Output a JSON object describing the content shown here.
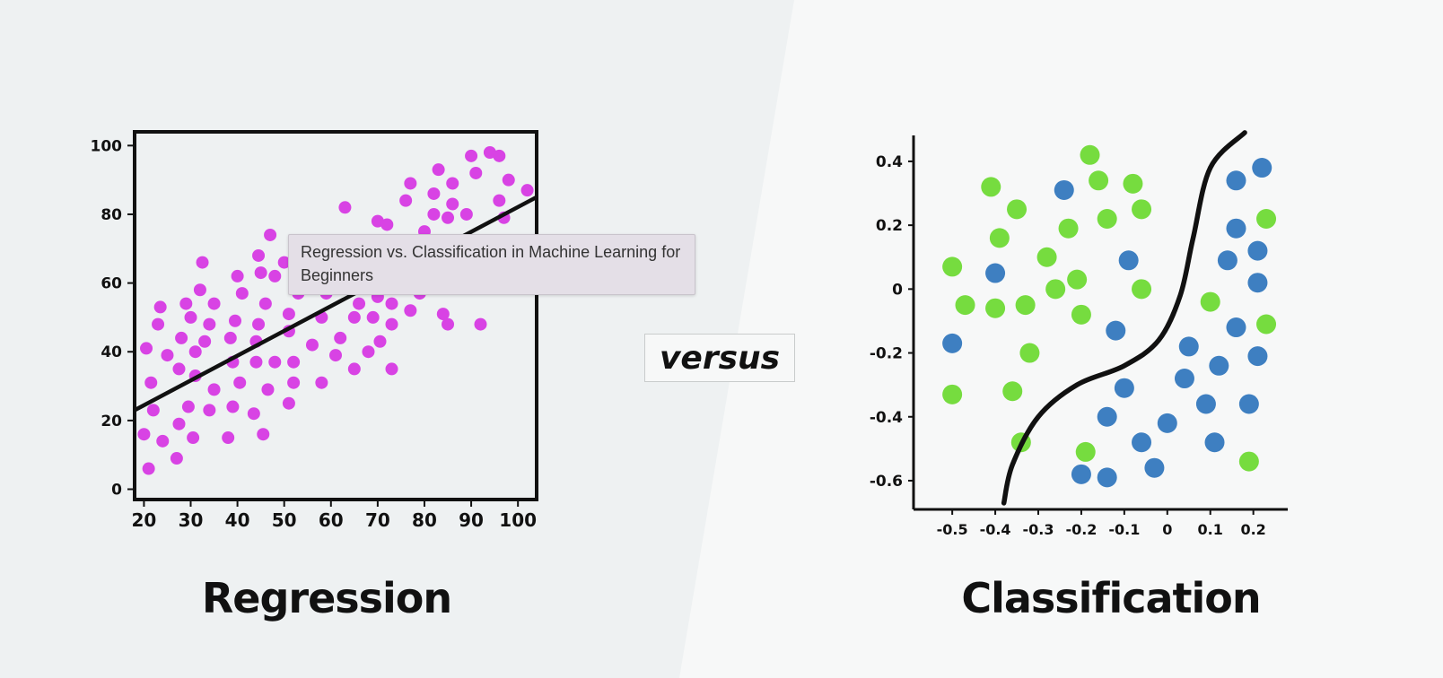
{
  "captions": {
    "left": "Regression",
    "right": "Classification",
    "middle": "versus"
  },
  "tooltip": {
    "text": "Regression vs. Classification in Machine Learning for Beginners"
  },
  "colors": {
    "left_background": "#eef1f2",
    "right_background": "#f7f8f8",
    "regression_point": "#d843e4",
    "class_green": "#76dc3f",
    "class_blue": "#3e7fc1",
    "line": "#111111"
  },
  "chart_data": [
    {
      "type": "scatter",
      "title": "",
      "xlabel": "",
      "ylabel": "",
      "xlim": [
        18,
        104
      ],
      "ylim": [
        -3,
        104
      ],
      "xticks": [
        20,
        30,
        40,
        50,
        60,
        70,
        80,
        90,
        100
      ],
      "yticks": [
        0,
        20,
        40,
        60,
        80,
        100
      ],
      "regression_line": {
        "x": [
          18,
          104
        ],
        "y": [
          23,
          85
        ]
      },
      "series": [
        {
          "points": [
            [
              20,
              16
            ],
            [
              21,
              6
            ],
            [
              20.5,
              41
            ],
            [
              21.5,
              31
            ],
            [
              22,
              23
            ],
            [
              23,
              48
            ],
            [
              23.5,
              53
            ],
            [
              24,
              14
            ],
            [
              25,
              39
            ],
            [
              27,
              9
            ],
            [
              27.5,
              19
            ],
            [
              27.5,
              35
            ],
            [
              28,
              44
            ],
            [
              29,
              54
            ],
            [
              29.5,
              24
            ],
            [
              30,
              50
            ],
            [
              30.5,
              15
            ],
            [
              31,
              40
            ],
            [
              31,
              33
            ],
            [
              32,
              58
            ],
            [
              32.5,
              66
            ],
            [
              33,
              43
            ],
            [
              34,
              48
            ],
            [
              34,
              23
            ],
            [
              35,
              29
            ],
            [
              35,
              54
            ],
            [
              38,
              15
            ],
            [
              38.5,
              44
            ],
            [
              39,
              37
            ],
            [
              39,
              24
            ],
            [
              39.5,
              49
            ],
            [
              40,
              62
            ],
            [
              40.5,
              31
            ],
            [
              41,
              57
            ],
            [
              43.5,
              22
            ],
            [
              44,
              43
            ],
            [
              44,
              37
            ],
            [
              44.5,
              68
            ],
            [
              44.5,
              48
            ],
            [
              45,
              63
            ],
            [
              45.5,
              16
            ],
            [
              46,
              54
            ],
            [
              46.5,
              29
            ],
            [
              47,
              74
            ],
            [
              48,
              37
            ],
            [
              48,
              62
            ],
            [
              50,
              66
            ],
            [
              51,
              25
            ],
            [
              51,
              46
            ],
            [
              51,
              51
            ],
            [
              52,
              31
            ],
            [
              52,
              37
            ],
            [
              53,
              57
            ],
            [
              56,
              42
            ],
            [
              58,
              31
            ],
            [
              58,
              50
            ],
            [
              59,
              59
            ],
            [
              59,
              57
            ],
            [
              61,
              39
            ],
            [
              62,
              44
            ],
            [
              63,
              82
            ],
            [
              65,
              35
            ],
            [
              65,
              50
            ],
            [
              66,
              54
            ],
            [
              67,
              65
            ],
            [
              68,
              40
            ],
            [
              69,
              50
            ],
            [
              70,
              56
            ],
            [
              70.5,
              43
            ],
            [
              70,
              78
            ],
            [
              73,
              35
            ],
            [
              73,
              48
            ],
            [
              73,
              54
            ],
            [
              72,
              77
            ],
            [
              75,
              59
            ],
            [
              77,
              52
            ],
            [
              76,
              84
            ],
            [
              77,
              89
            ],
            [
              79,
              57
            ],
            [
              79,
              70
            ],
            [
              80,
              75
            ],
            [
              82,
              80
            ],
            [
              82,
              86
            ],
            [
              83,
              93
            ],
            [
              84,
              51
            ],
            [
              85,
              48
            ],
            [
              85,
              60
            ],
            [
              85,
              79
            ],
            [
              86,
              72
            ],
            [
              86,
              83
            ],
            [
              86,
              89
            ],
            [
              89,
              80
            ],
            [
              90,
              97
            ],
            [
              91,
              92
            ],
            [
              92,
              48
            ],
            [
              94,
              98
            ],
            [
              96,
              97
            ],
            [
              96,
              84
            ],
            [
              96,
              59
            ],
            [
              97,
              79
            ],
            [
              98,
              90
            ],
            [
              102,
              87
            ]
          ]
        }
      ]
    },
    {
      "type": "scatter",
      "title": "",
      "xlabel": "",
      "ylabel": "",
      "xlim": [
        -0.59,
        0.28
      ],
      "ylim": [
        -0.69,
        0.47
      ],
      "xticks": [
        -0.5,
        -0.4,
        -0.3,
        -0.2,
        -0.1,
        0,
        0.1,
        0.2
      ],
      "yticks": [
        0.4,
        0.2,
        0,
        -0.2,
        -0.4,
        -0.6
      ],
      "decision_boundary": {
        "x": [
          -0.38,
          -0.36,
          -0.3,
          -0.21,
          -0.1,
          -0.02,
          0.03,
          0.06,
          0.1,
          0.18
        ],
        "y": [
          -0.67,
          -0.55,
          -0.4,
          -0.3,
          -0.24,
          -0.16,
          -0.02,
          0.16,
          0.38,
          0.49
        ]
      },
      "series": [
        {
          "points": [
            [
              -0.5,
              0.07
            ],
            [
              -0.47,
              -0.05
            ],
            [
              -0.5,
              -0.33
            ],
            [
              -0.41,
              0.32
            ],
            [
              -0.4,
              -0.06
            ],
            [
              -0.39,
              0.16
            ],
            [
              -0.36,
              -0.32
            ],
            [
              -0.34,
              -0.48
            ],
            [
              -0.35,
              0.25
            ],
            [
              -0.33,
              -0.05
            ],
            [
              -0.32,
              -0.2
            ],
            [
              -0.28,
              0.1
            ],
            [
              -0.26,
              0
            ],
            [
              -0.23,
              0.19
            ],
            [
              -0.21,
              0.03
            ],
            [
              -0.2,
              -0.08
            ],
            [
              -0.19,
              -0.51
            ],
            [
              -0.18,
              0.42
            ],
            [
              -0.16,
              0.34
            ],
            [
              -0.14,
              0.22
            ],
            [
              -0.08,
              0.33
            ],
            [
              -0.06,
              0.25
            ],
            [
              -0.06,
              0
            ],
            [
              0.1,
              -0.04
            ],
            [
              0.23,
              0.22
            ],
            [
              0.23,
              -0.11
            ],
            [
              0.19,
              -0.54
            ]
          ]
        },
        {
          "points": [
            [
              -0.5,
              -0.17
            ],
            [
              -0.4,
              0.05
            ],
            [
              -0.24,
              0.31
            ],
            [
              -0.2,
              -0.58
            ],
            [
              -0.14,
              -0.59
            ],
            [
              -0.14,
              -0.4
            ],
            [
              -0.12,
              -0.13
            ],
            [
              -0.1,
              -0.31
            ],
            [
              -0.09,
              0.09
            ],
            [
              -0.06,
              -0.48
            ],
            [
              -0.03,
              -0.56
            ],
            [
              0,
              -0.42
            ],
            [
              0.04,
              -0.28
            ],
            [
              0.05,
              -0.18
            ],
            [
              0.09,
              -0.36
            ],
            [
              0.11,
              -0.48
            ],
            [
              0.12,
              -0.24
            ],
            [
              0.14,
              0.09
            ],
            [
              0.16,
              0.34
            ],
            [
              0.16,
              0.19
            ],
            [
              0.16,
              -0.12
            ],
            [
              0.19,
              -0.36
            ],
            [
              0.21,
              0.12
            ],
            [
              0.21,
              0.02
            ],
            [
              0.21,
              -0.21
            ],
            [
              0.22,
              0.38
            ]
          ]
        }
      ]
    }
  ]
}
